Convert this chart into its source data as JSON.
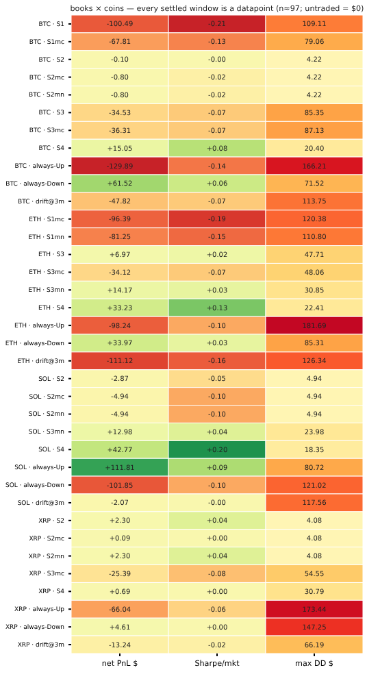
{
  "chart_data": {
    "type": "heatmap",
    "title": "books × coins — every settled window is a datapoint (n≈97; untraded = $0)",
    "categories": [
      "net PnL $",
      "Sharpe/mkt",
      "max DD $"
    ],
    "y_categories": [
      "BTC · S1",
      "BTC · S1mc",
      "BTC · S2",
      "BTC · S2mc",
      "BTC · S2mn",
      "BTC · S3",
      "BTC · S3mc",
      "BTC · S4",
      "BTC · always-Up",
      "BTC · always-Down",
      "BTC · drift@3m",
      "ETH · S1mc",
      "ETH · S1mn",
      "ETH · S3",
      "ETH · S3mc",
      "ETH · S3mn",
      "ETH · S4",
      "ETH · always-Up",
      "ETH · always-Down",
      "ETH · drift@3m",
      "SOL · S2",
      "SOL · S2mc",
      "SOL · S2mn",
      "SOL · S3mn",
      "SOL · S4",
      "SOL · always-Up",
      "SOL · always-Down",
      "SOL · drift@3m",
      "XRP · S2",
      "XRP · S2mc",
      "XRP · S2mn",
      "XRP · S3mc",
      "XRP · S4",
      "XRP · always-Up",
      "XRP · always-Down",
      "XRP · drift@3m"
    ],
    "cells": [
      [
        -100.49,
        -0.21,
        109.11
      ],
      [
        -67.81,
        -0.13,
        79.06
      ],
      [
        -0.1,
        0,
        4.22
      ],
      [
        -0.8,
        -0.02,
        4.22
      ],
      [
        -0.8,
        -0.02,
        4.22
      ],
      [
        -34.53,
        -0.07,
        85.35
      ],
      [
        -36.31,
        -0.07,
        87.13
      ],
      [
        15.05,
        0.08,
        20.4
      ],
      [
        -129.89,
        -0.14,
        166.21
      ],
      [
        61.52,
        0.06,
        71.52
      ],
      [
        -47.82,
        -0.07,
        113.75
      ],
      [
        -96.39,
        -0.19,
        120.38
      ],
      [
        -81.25,
        -0.15,
        110.8
      ],
      [
        6.97,
        0.02,
        47.71
      ],
      [
        -34.12,
        -0.07,
        48.06
      ],
      [
        14.17,
        0.03,
        30.85
      ],
      [
        33.23,
        0.13,
        22.41
      ],
      [
        -98.24,
        -0.1,
        181.69
      ],
      [
        33.97,
        0.03,
        85.31
      ],
      [
        -111.12,
        -0.16,
        126.34
      ],
      [
        -2.87,
        -0.05,
        4.94
      ],
      [
        -4.94,
        -0.1,
        4.94
      ],
      [
        -4.94,
        -0.1,
        4.94
      ],
      [
        12.98,
        0.04,
        23.98
      ],
      [
        42.77,
        0.2,
        18.35
      ],
      [
        111.81,
        0.09,
        80.72
      ],
      [
        -101.85,
        -0.1,
        121.02
      ],
      [
        -2.07,
        0,
        117.56
      ],
      [
        2.3,
        0.04,
        4.08
      ],
      [
        0.09,
        0,
        4.08
      ],
      [
        2.3,
        0.04,
        4.08
      ],
      [
        -25.39,
        -0.08,
        54.55
      ],
      [
        0.69,
        0,
        30.79
      ],
      [
        -66.04,
        -0.06,
        173.44
      ],
      [
        4.61,
        0,
        147.25
      ],
      [
        -13.24,
        -0.02,
        66.19
      ]
    ],
    "cell_labels": [
      [
        "-100.49",
        "-0.21",
        "109.11"
      ],
      [
        "-67.81",
        "-0.13",
        "79.06"
      ],
      [
        "-0.10",
        "-0.00",
        "4.22"
      ],
      [
        "-0.80",
        "-0.02",
        "4.22"
      ],
      [
        "-0.80",
        "-0.02",
        "4.22"
      ],
      [
        "-34.53",
        "-0.07",
        "85.35"
      ],
      [
        "-36.31",
        "-0.07",
        "87.13"
      ],
      [
        "+15.05",
        "+0.08",
        "20.40"
      ],
      [
        "-129.89",
        "-0.14",
        "166.21"
      ],
      [
        "+61.52",
        "+0.06",
        "71.52"
      ],
      [
        "-47.82",
        "-0.07",
        "113.75"
      ],
      [
        "-96.39",
        "-0.19",
        "120.38"
      ],
      [
        "-81.25",
        "-0.15",
        "110.80"
      ],
      [
        "+6.97",
        "+0.02",
        "47.71"
      ],
      [
        "-34.12",
        "-0.07",
        "48.06"
      ],
      [
        "+14.17",
        "+0.03",
        "30.85"
      ],
      [
        "+33.23",
        "+0.13",
        "22.41"
      ],
      [
        "-98.24",
        "-0.10",
        "181.69"
      ],
      [
        "+33.97",
        "+0.03",
        "85.31"
      ],
      [
        "-111.12",
        "-0.16",
        "126.34"
      ],
      [
        "-2.87",
        "-0.05",
        "4.94"
      ],
      [
        "-4.94",
        "-0.10",
        "4.94"
      ],
      [
        "-4.94",
        "-0.10",
        "4.94"
      ],
      [
        "+12.98",
        "+0.04",
        "23.98"
      ],
      [
        "+42.77",
        "+0.20",
        "18.35"
      ],
      [
        "+111.81",
        "+0.09",
        "80.72"
      ],
      [
        "-101.85",
        "-0.10",
        "121.02"
      ],
      [
        "-2.07",
        "-0.00",
        "117.56"
      ],
      [
        "+2.30",
        "+0.04",
        "4.08"
      ],
      [
        "+0.09",
        "+0.00",
        "4.08"
      ],
      [
        "+2.30",
        "+0.04",
        "4.08"
      ],
      [
        "-25.39",
        "-0.08",
        "54.55"
      ],
      [
        "+0.69",
        "+0.00",
        "30.79"
      ],
      [
        "-66.04",
        "-0.06",
        "173.44"
      ],
      [
        "+4.61",
        "+0.00",
        "147.25"
      ],
      [
        "-13.24",
        "-0.02",
        "66.19"
      ]
    ]
  }
}
